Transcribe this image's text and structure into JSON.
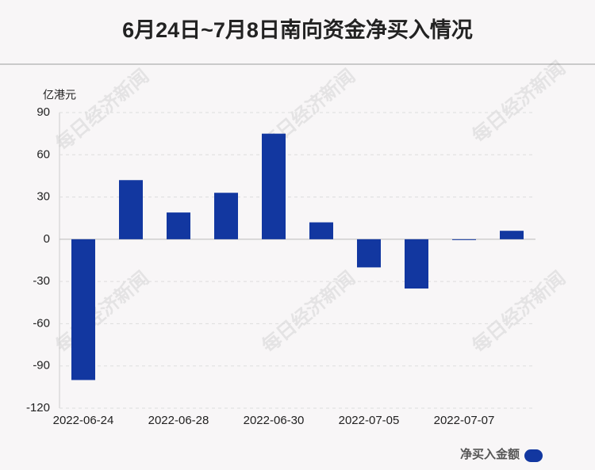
{
  "chart_data": {
    "type": "bar",
    "title": "6月24日~7月8日南向资金净买入情况",
    "y_axis_label": "亿港元",
    "watermark": "每日经济新闻",
    "categories": [
      "2022-06-24",
      null,
      "2022-06-28",
      null,
      "2022-06-30",
      null,
      "2022-07-05",
      null,
      "2022-07-07",
      null
    ],
    "series": [
      {
        "name": "净买入金额",
        "color": "#1237a0",
        "values": [
          -100,
          42,
          19,
          33,
          75,
          12,
          -20,
          -35,
          -0.5,
          6
        ]
      }
    ],
    "ylim": [
      -120,
      90
    ],
    "yticks": [
      -120,
      -90,
      -60,
      -30,
      0,
      30,
      60,
      90
    ],
    "grid": true,
    "legend": "bottom-right"
  }
}
